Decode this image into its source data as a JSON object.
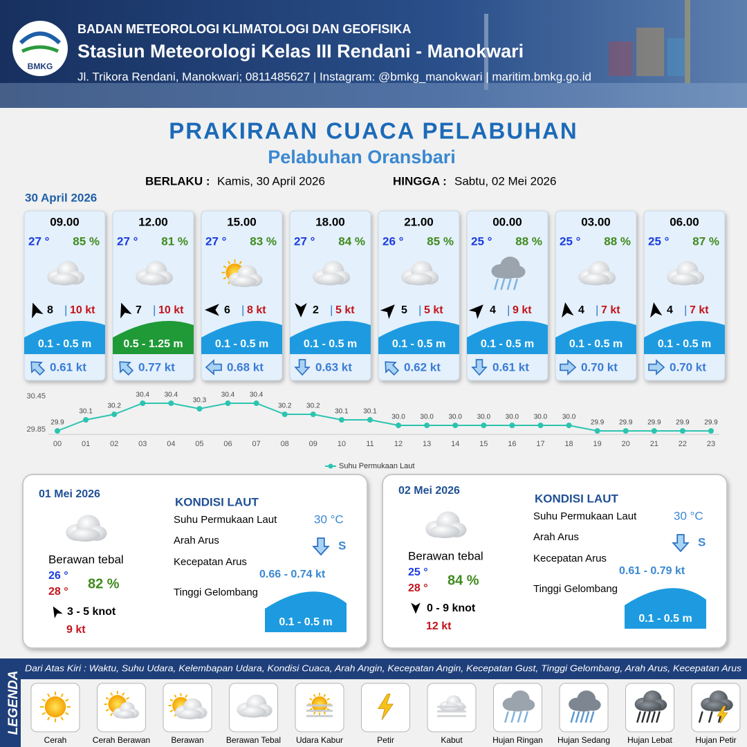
{
  "header": {
    "logo_text": "BMKG",
    "org": "BADAN METEOROLOGI KLIMATOLOGI DAN GEOFISIKA",
    "station": "Stasiun Meteorologi Kelas III Rendani - Manokwari",
    "contact": "Jl. Trikora Rendani, Manokwari; 0811485627 | Instagram: @bmkg_manokwari | maritim.bmkg.go.id"
  },
  "title": "PRAKIRAAN CUACA PELABUHAN",
  "subtitle": "Pelabuhan Oransbari",
  "validity": {
    "from_label": "BERLAKU :",
    "from": "Kamis, 30 April 2026",
    "to_label": "HINGGA :",
    "to": "Sabtu, 02 Mei 2026"
  },
  "date_label": "30 April 2026",
  "gust_separator": "|",
  "cards": [
    {
      "time": "09.00",
      "temp": "27 °",
      "humidity": "85 %",
      "condition": "Berawan Tebal",
      "wind_dir": -20,
      "wind_speed": "8",
      "gust": "10 kt",
      "wave": "0.1 - 0.5 m",
      "wave_color": "#1e9be0",
      "current_dir": -45,
      "current": "0.61 kt"
    },
    {
      "time": "12.00",
      "temp": "27 °",
      "humidity": "81 %",
      "condition": "Berawan Tebal",
      "wind_dir": -20,
      "wind_speed": "7",
      "gust": "10 kt",
      "wave": "0.5 - 1.25 m",
      "wave_color": "#1f9a36",
      "current_dir": -45,
      "current": "0.77 kt"
    },
    {
      "time": "15.00",
      "temp": "27 °",
      "humidity": "83 %",
      "condition": "Berawan",
      "wind_dir": -90,
      "wind_speed": "6",
      "gust": "8 kt",
      "wave": "0.1 - 0.5 m",
      "wave_color": "#1e9be0",
      "current_dir": -90,
      "current": "0.68 kt"
    },
    {
      "time": "18.00",
      "temp": "27 °",
      "humidity": "84 %",
      "condition": "Berawan Tebal",
      "wind_dir": 180,
      "wind_speed": "2",
      "gust": "5 kt",
      "wave": "0.1 - 0.5 m",
      "wave_color": "#1e9be0",
      "current_dir": 180,
      "current": "0.63 kt"
    },
    {
      "time": "21.00",
      "temp": "26 °",
      "humidity": "85 %",
      "condition": "Berawan Tebal",
      "wind_dir": 45,
      "wind_speed": "5",
      "gust": "5 kt",
      "wave": "0.1 - 0.5 m",
      "wave_color": "#1e9be0",
      "current_dir": -45,
      "current": "0.62 kt"
    },
    {
      "time": "00.00",
      "temp": "25 °",
      "humidity": "88 %",
      "condition": "Hujan Ringan",
      "wind_dir": 45,
      "wind_speed": "4",
      "gust": "9 kt",
      "wave": "0.1 - 0.5 m",
      "wave_color": "#1e9be0",
      "current_dir": 180,
      "current": "0.61 kt"
    },
    {
      "time": "03.00",
      "temp": "25 °",
      "humidity": "88 %",
      "condition": "Berawan Tebal",
      "wind_dir": -10,
      "wind_speed": "4",
      "gust": "7 kt",
      "wave": "0.1 - 0.5 m",
      "wave_color": "#1e9be0",
      "current_dir": 90,
      "current": "0.70 kt"
    },
    {
      "time": "06.00",
      "temp": "25 °",
      "humidity": "87 %",
      "condition": "Berawan Tebal",
      "wind_dir": -10,
      "wind_speed": "4",
      "gust": "7 kt",
      "wave": "0.1 - 0.5 m",
      "wave_color": "#1e9be0",
      "current_dir": 90,
      "current": "0.70 kt"
    }
  ],
  "chart_data": {
    "type": "line",
    "categories": [
      "00",
      "01",
      "02",
      "03",
      "04",
      "05",
      "06",
      "07",
      "08",
      "09",
      "10",
      "11",
      "12",
      "13",
      "14",
      "15",
      "16",
      "17",
      "18",
      "19",
      "20",
      "21",
      "22",
      "23"
    ],
    "series": [
      {
        "name": "Suhu Permukaan Laut",
        "color": "#2cc4b0",
        "values": [
          29.9,
          30.1,
          30.2,
          30.4,
          30.4,
          30.3,
          30.4,
          30.4,
          30.2,
          30.2,
          30.1,
          30.1,
          30,
          30,
          30,
          30,
          30,
          30,
          30,
          29.9,
          29.9,
          29.9,
          29.9,
          29.9
        ],
        "value_labels": [
          "29.9",
          "30.1",
          "30.2",
          "30.4",
          "30.4",
          "30.3",
          "30.4",
          "30.4",
          "30.2",
          "30.2",
          "30.1",
          "30.1",
          "30.0",
          "30.0",
          "30.0",
          "30.0",
          "30.0",
          "30.0",
          "30.0",
          "29.9",
          "29.9",
          "29.9",
          "29.9",
          "29.9"
        ]
      }
    ],
    "ylim": [
      29.85,
      30.45
    ],
    "yticks": [
      29.85,
      30.45
    ]
  },
  "sea_heading": "KONDISI LAUT",
  "sea_labels": [
    "Suhu Permukaan Laut",
    "Arah Arus",
    "Kecepatan Arus",
    "Tinggi Gelombang"
  ],
  "days": [
    {
      "date": "01 Mei 2026",
      "condition": "Berawan tebal",
      "temp_min": "26 °",
      "temp_max": "28 °",
      "humidity": "82 %",
      "wind_dir": -30,
      "wind": "3  - 5 knot",
      "gust": "9 kt",
      "sst": "30 °C",
      "current_dir": 180,
      "current_from": "S",
      "current_speed": "0.66  - 0.74 kt",
      "wave": "0.1 - 0.5 m"
    },
    {
      "date": "02 Mei 2026",
      "condition": "Berawan tebal",
      "temp_min": "25 °",
      "temp_max": "28 °",
      "humidity": "84 %",
      "wind_dir": 180,
      "wind": "0  - 9 knot",
      "gust": "12 kt",
      "sst": "30 °C",
      "current_dir": 180,
      "current_from": "S",
      "current_speed": "0.61  - 0.79 kt",
      "wave": "0.1 - 0.5 m"
    }
  ],
  "legend": {
    "title": "LEGENDA",
    "description": "Dari Atas Kiri : Waktu, Suhu Udara, Kelembapan Udara, Kondisi Cuaca, Arah Angin, Kecepatan Angin, Kecepatan Gust, Tinggi Gelombang, Arah Arus, Kecepatan Arus",
    "items": [
      "Cerah",
      "Cerah Berawan",
      "Berawan",
      "Berawan Tebal",
      "Udara Kabur",
      "Petir",
      "Kabut",
      "Hujan Ringan",
      "Hujan Sedang",
      "Hujan Lebat",
      "Hujan Petir"
    ]
  }
}
